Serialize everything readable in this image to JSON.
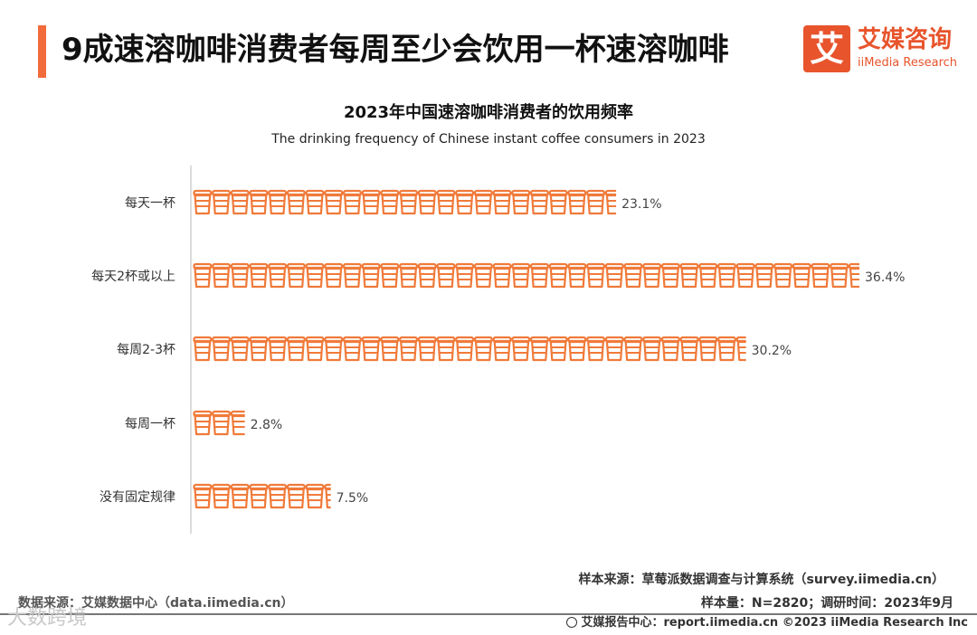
{
  "header": {
    "title": "9成速溶咖啡消费者每周至少会饮用一杯速溶咖啡",
    "accent_color": "#f26b3a"
  },
  "logo": {
    "glyph": "艾",
    "name_cn": "艾媒咨询",
    "name_en": "iiMedia Research",
    "color": "#e8542c"
  },
  "chart_data": {
    "type": "bar",
    "orientation": "horizontal",
    "title": "2023年中国速溶咖啡消费者的饮用频率",
    "subtitle": "The drinking frequency of Chinese instant coffee consumers in 2023",
    "categories": [
      "每天一杯",
      "每天2杯或以上",
      "每周2-3杯",
      "每周一杯",
      "没有固定规律"
    ],
    "values": [
      23.1,
      36.4,
      30.2,
      2.8,
      7.5
    ],
    "value_labels": [
      "23.1%",
      "36.4%",
      "30.2%",
      "2.8%",
      "7.5%"
    ],
    "unit": "%",
    "mark": "cup-icon",
    "bar_color": "#f07a3a",
    "xlim": [
      0,
      36.4
    ],
    "grid": false
  },
  "footer": {
    "sample_source": "样本来源：草莓派数据调查与计算系统（survey.iimedia.cn）",
    "sample_size": "样本量：N=2820；调研时间：2023年9月",
    "data_source": "数据来源：艾媒数据中心（data.iimedia.cn）",
    "report_center": "艾媒报告中心：report.iimedia.cn   ©2023  iiMedia Research  Inc",
    "globe_icon": "globe-icon"
  },
  "watermark": {
    "text": "大数跨境"
  }
}
